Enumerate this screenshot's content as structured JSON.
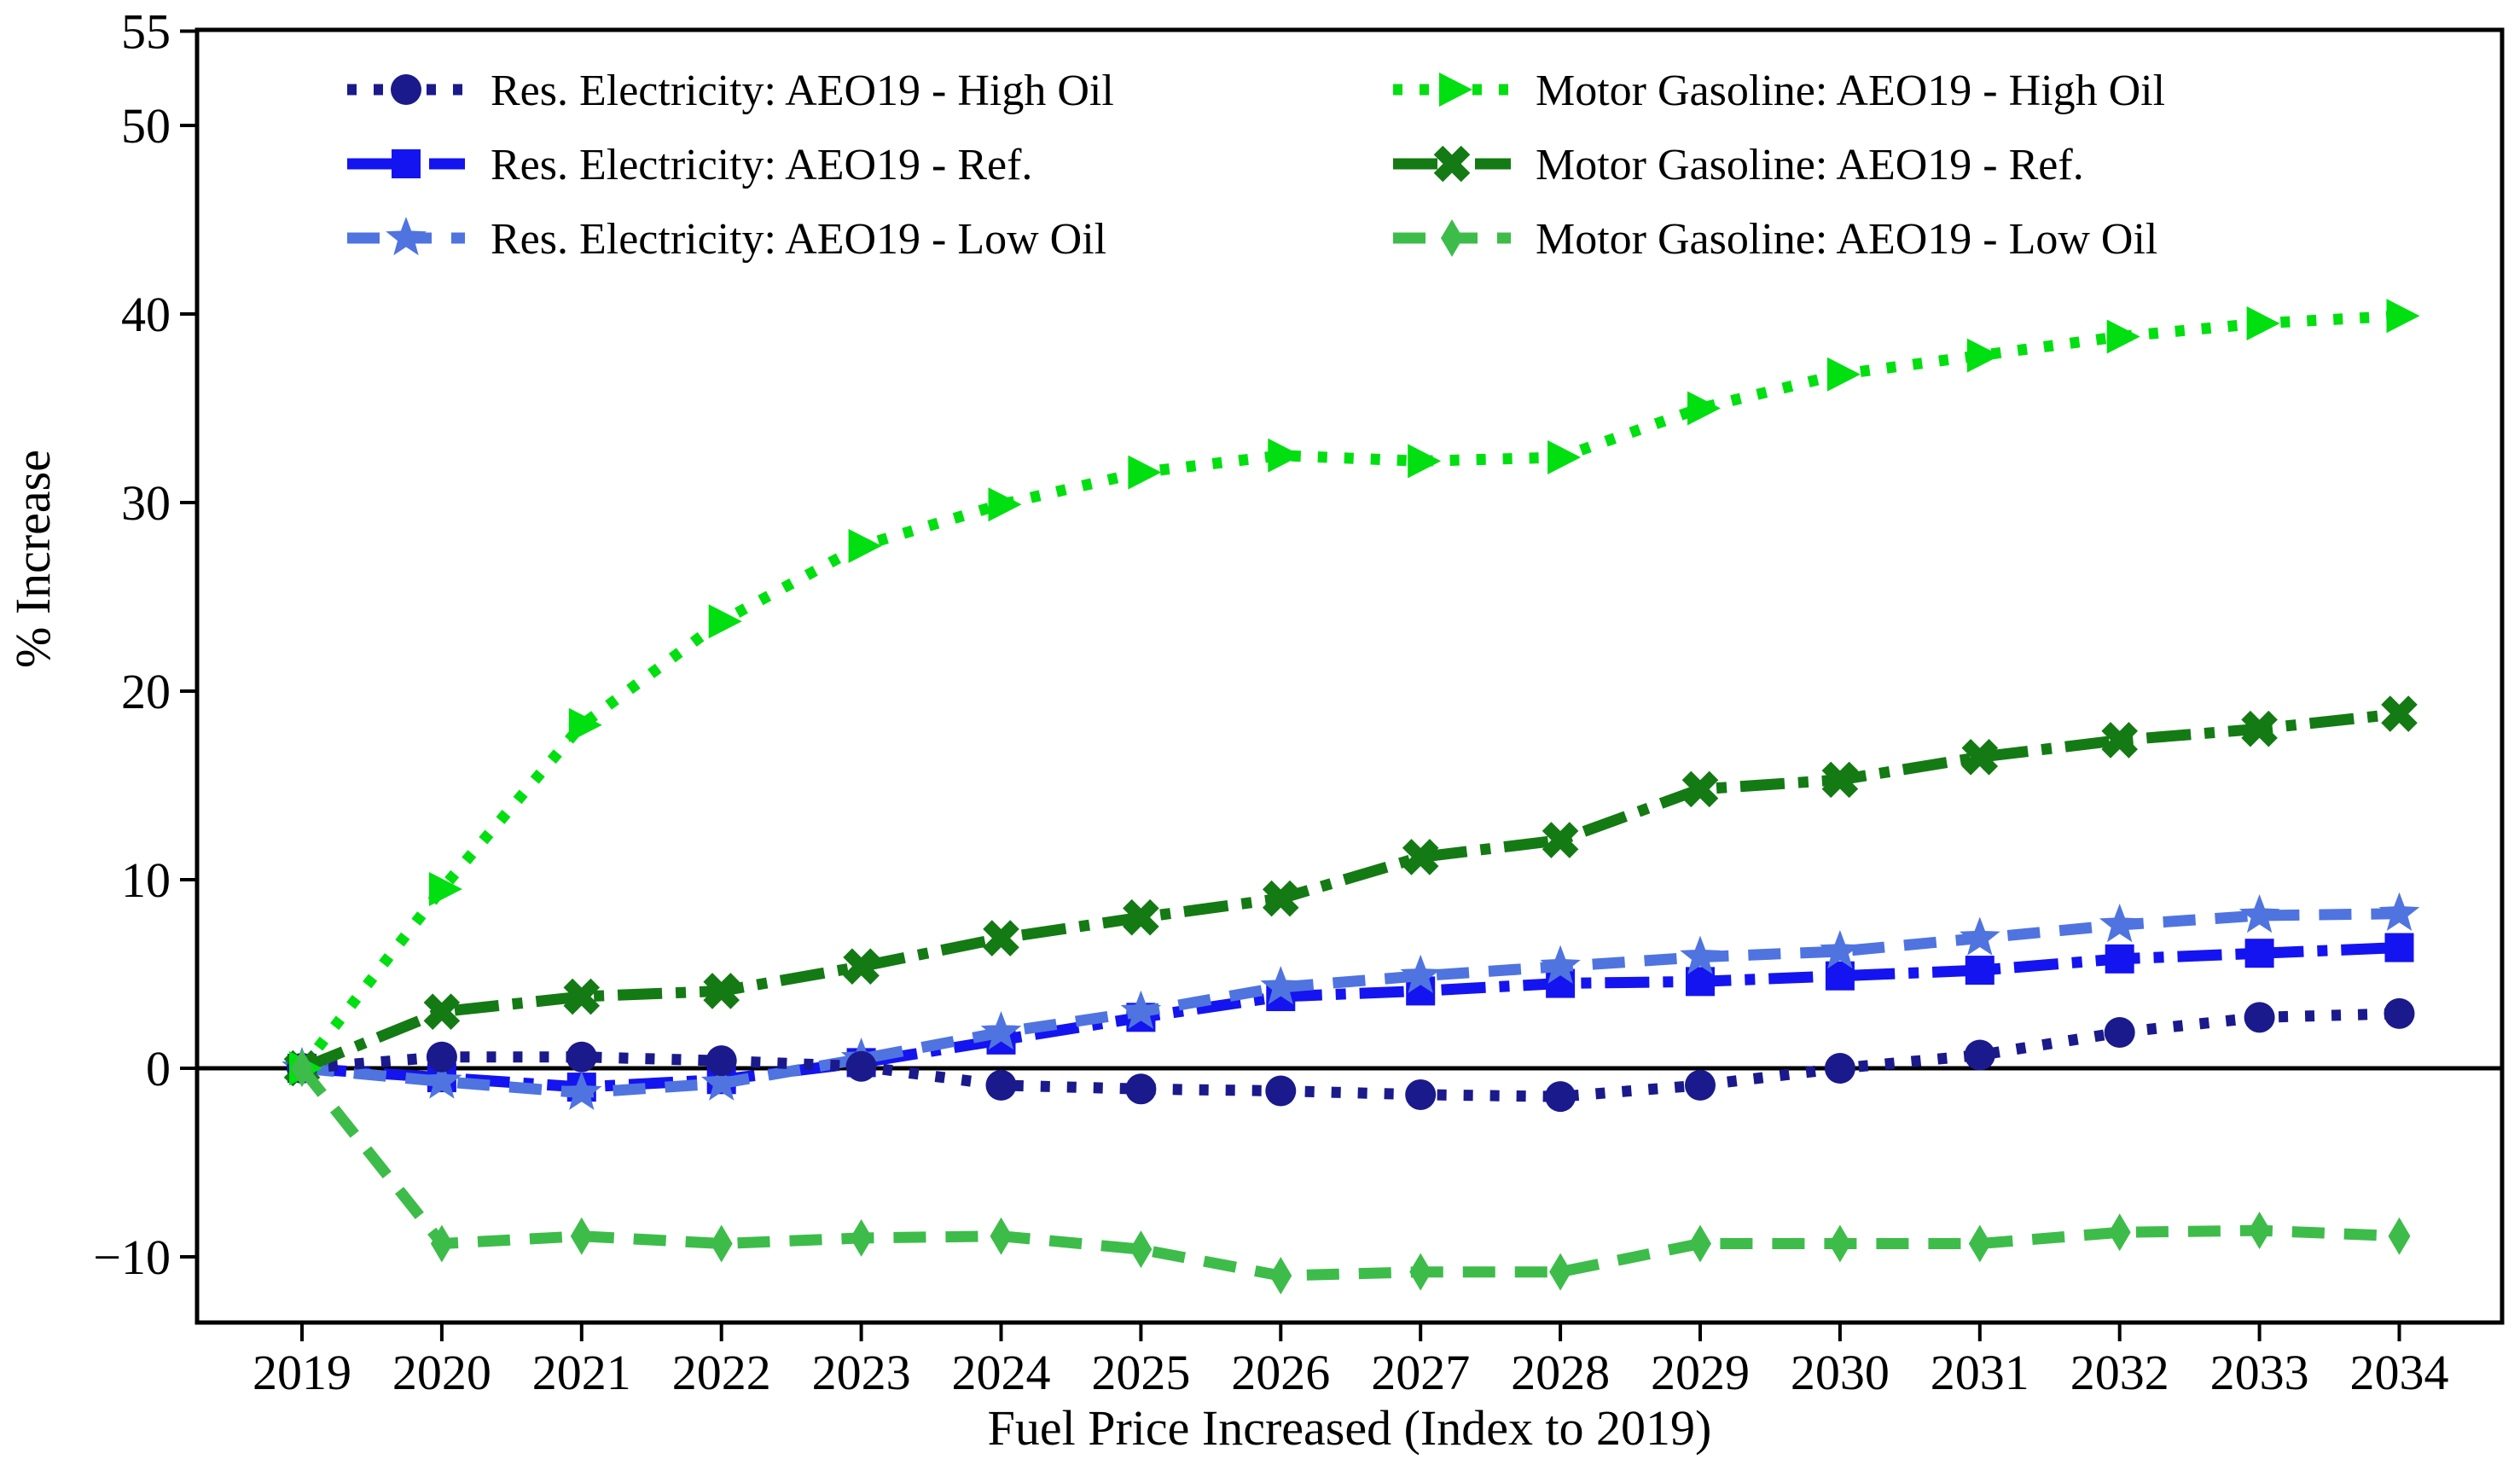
{
  "chart_data": {
    "type": "line",
    "title": "",
    "xlabel": "Fuel Price Increased (Index to 2019)",
    "ylabel": "% Increase",
    "x": [
      2019,
      2020,
      2021,
      2022,
      2023,
      2024,
      2025,
      2026,
      2027,
      2028,
      2029,
      2030,
      2031,
      2032,
      2033,
      2034
    ],
    "xtick_labels": [
      "2019",
      "2020",
      "2021",
      "2022",
      "2023",
      "2024",
      "2025",
      "2026",
      "2027",
      "2028",
      "2029",
      "2030",
      "2031",
      "2032",
      "2033",
      "2034"
    ],
    "yticks": [
      55,
      50,
      40,
      30,
      20,
      10,
      0,
      -10
    ],
    "ytick_labels": [
      "55",
      "50",
      "40",
      "30",
      "20",
      "10",
      "0",
      "−10"
    ],
    "ylim": [
      -13.5,
      55.1
    ],
    "grid": false,
    "zero_line": true,
    "legend_position": "upper-center-two-columns",
    "axis_color": "#000000",
    "series": [
      {
        "name": "Res. Electricity: AEO19 - High Oil",
        "color": "#1a1a8c",
        "linestyle": "dotted",
        "marker": "circle",
        "values": [
          0,
          0.6,
          0.6,
          0.4,
          0.1,
          -0.9,
          -1.1,
          -1.2,
          -1.4,
          -1.5,
          -0.9,
          0.0,
          0.7,
          1.9,
          2.7,
          2.9
        ]
      },
      {
        "name": "Res. Electricity: AEO19 - Ref.",
        "color": "#1414f0",
        "linestyle": "dashdot",
        "marker": "square",
        "values": [
          0,
          -0.5,
          -1.0,
          -0.6,
          0.3,
          1.5,
          2.7,
          3.8,
          4.1,
          4.5,
          4.6,
          4.9,
          5.2,
          5.8,
          6.1,
          6.4
        ]
      },
      {
        "name": "Res. Electricity: AEO19 - Low Oil",
        "color": "#4f74e0",
        "linestyle": "dashed",
        "marker": "star",
        "values": [
          0,
          -0.7,
          -1.3,
          -0.8,
          0.5,
          1.9,
          3.0,
          4.3,
          4.9,
          5.4,
          5.9,
          6.2,
          6.9,
          7.6,
          8.1,
          8.2
        ]
      },
      {
        "name": "Motor Gasoline: AEO19 - High Oil",
        "color": "#00df10",
        "linestyle": "dotted",
        "marker": "triangle-right",
        "values": [
          0,
          9.5,
          18.2,
          23.7,
          27.7,
          29.9,
          31.6,
          32.5,
          32.2,
          32.4,
          35.0,
          36.8,
          37.8,
          38.8,
          39.5,
          39.9
        ]
      },
      {
        "name": "Motor Gasoline: AEO19 - Ref.",
        "color": "#147a14",
        "linestyle": "dashdot",
        "marker": "x-thick",
        "values": [
          0,
          3.0,
          3.8,
          4.1,
          5.4,
          6.9,
          8.0,
          9.0,
          11.2,
          12.1,
          14.8,
          15.3,
          16.5,
          17.4,
          18.0,
          18.8
        ]
      },
      {
        "name": "Motor Gasoline: AEO19 - Low Oil",
        "color": "#3dbc4a",
        "linestyle": "dashed",
        "marker": "diamond-thin",
        "values": [
          0,
          -9.3,
          -8.9,
          -9.3,
          -9.0,
          -8.9,
          -9.6,
          -11.0,
          -10.8,
          -10.8,
          -9.3,
          -9.3,
          -9.3,
          -8.7,
          -8.6,
          -8.9
        ]
      }
    ],
    "legend_columns": [
      [
        0,
        1,
        2
      ],
      [
        3,
        4,
        5
      ]
    ]
  }
}
